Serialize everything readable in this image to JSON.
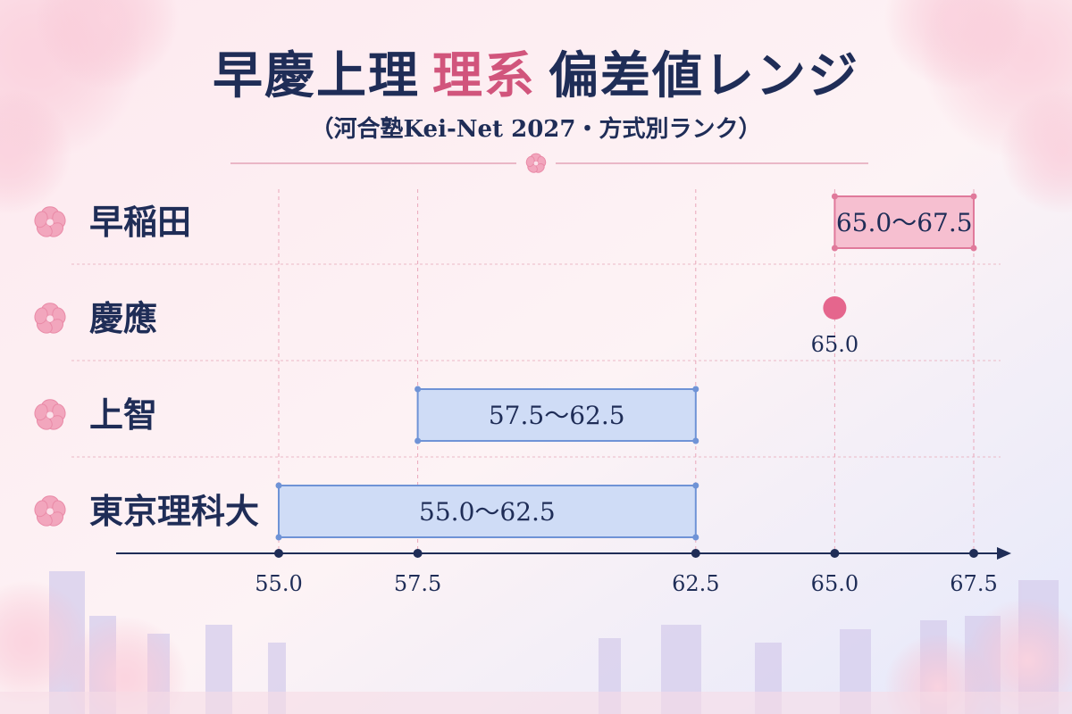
{
  "title": {
    "part1": "早慶上理",
    "part2": "理系",
    "part3": "偏差値レンジ"
  },
  "subtitle": "（河合塾Kei-Net 2027・方式別ランク）",
  "colors": {
    "navy": "#1f2d57",
    "pink_accent": "#d1557c",
    "pink_bar_fill": "#f6bfd0",
    "pink_bar_stroke": "#e07a9b",
    "blue_bar_fill": "#cfdcf6",
    "blue_bar_stroke": "#6f93d6"
  },
  "chart_data": {
    "type": "range-bar",
    "categories": [
      "早稲田",
      "慶應",
      "上智",
      "東京理科大"
    ],
    "series": [
      {
        "category": "早稲田",
        "low": 65.0,
        "high": 67.5,
        "label": "65.0～67.5",
        "color": "pink"
      },
      {
        "category": "慶應",
        "low": 65.0,
        "high": 65.0,
        "label": "65.0",
        "color": "pink"
      },
      {
        "category": "上智",
        "low": 57.5,
        "high": 62.5,
        "label": "57.5～62.5",
        "color": "blue"
      },
      {
        "category": "東京理科大",
        "low": 55.0,
        "high": 62.5,
        "label": "55.0～62.5",
        "color": "blue"
      }
    ],
    "x_ticks": [
      55.0,
      57.5,
      62.5,
      65.0,
      67.5
    ],
    "x_tick_labels": [
      "55.0",
      "57.5",
      "62.5",
      "65.0",
      "67.5"
    ],
    "xlim": [
      55.0,
      67.5
    ],
    "grid": true,
    "decoration": "sakura-blossom-icon"
  }
}
